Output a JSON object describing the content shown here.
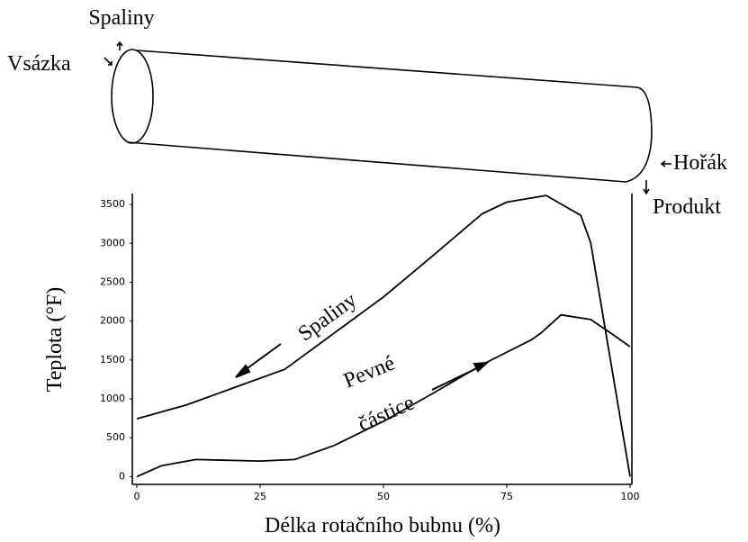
{
  "chart_data": {
    "type": "line",
    "xlabel": "Délka rotačního bubnu (%)",
    "ylabel": "Teplota (°F)",
    "xlim": [
      0,
      100
    ],
    "ylim": [
      -100,
      3640
    ],
    "xticks": [
      0,
      25,
      50,
      75,
      100
    ],
    "yticks": [
      0,
      500,
      1000,
      1500,
      2000,
      2500,
      3000,
      3500
    ],
    "series": [
      {
        "color": "#000000",
        "x": [
          0,
          10,
          20,
          30,
          50,
          60,
          70,
          75,
          83,
          90,
          92,
          100
        ],
        "values": [
          744,
          920,
          1150,
          1380,
          2310,
          2840,
          3380,
          3530,
          3616,
          3360,
          3010,
          0
        ]
      },
      {
        "color": "#000000",
        "x": [
          0,
          5,
          12,
          18,
          25,
          32,
          40,
          50,
          60,
          70,
          80,
          82,
          86,
          92,
          96,
          100
        ],
        "values": [
          0,
          140,
          220,
          210,
          200,
          220,
          400,
          710,
          1070,
          1440,
          1760,
          1850,
          2080,
          2020,
          1850,
          1670
        ]
      }
    ],
    "annotations": [
      "Spaliny",
      "Pevné",
      "částice"
    ]
  },
  "diagram": {
    "labels": [
      "Spaliny",
      "Vsázka",
      "Hořák",
      "Produkt"
    ]
  }
}
